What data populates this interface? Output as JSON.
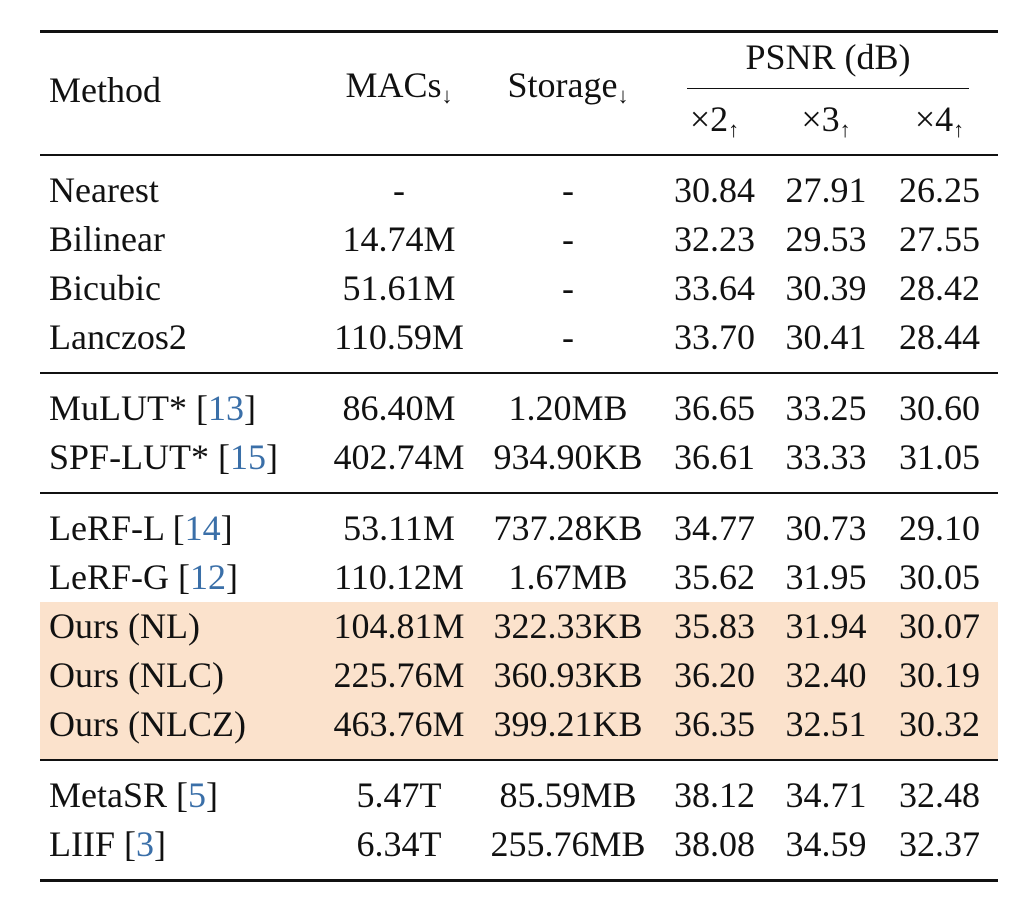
{
  "table": {
    "headers": {
      "method": "Method",
      "macs": "MACs",
      "macs_arrow": "↓",
      "storage": "Storage",
      "storage_arrow": "↓",
      "psnr": "PSNR (dB)",
      "x2": "×2",
      "x3": "×3",
      "x4": "×4",
      "up_arrow": "↑"
    },
    "group1": [
      {
        "method": "Nearest",
        "macs": "-",
        "storage": "-",
        "x2": "30.84",
        "x3": "27.91",
        "x4": "26.25"
      },
      {
        "method": "Bilinear",
        "macs": "14.74M",
        "storage": "-",
        "x2": "32.23",
        "x3": "29.53",
        "x4": "27.55"
      },
      {
        "method": "Bicubic",
        "macs": "51.61M",
        "storage": "-",
        "x2": "33.64",
        "x3": "30.39",
        "x4": "28.42"
      },
      {
        "method": "Lanczos2",
        "macs": "110.59M",
        "storage": "-",
        "x2": "33.70",
        "x3": "30.41",
        "x4": "28.44"
      }
    ],
    "group2": [
      {
        "method": "MuLUT* [",
        "cite": "13",
        "close": "]",
        "macs": "86.40M",
        "storage": "1.20MB",
        "x2": "36.65",
        "x3": "33.25",
        "x4": "30.60"
      },
      {
        "method": "SPF-LUT* [",
        "cite": "15",
        "close": "]",
        "macs": "402.74M",
        "storage": "934.90KB",
        "x2": "36.61",
        "x3": "33.33",
        "x4": "31.05"
      }
    ],
    "group3": [
      {
        "method": "LeRF-L [",
        "cite": "14",
        "close": "]",
        "macs": "53.11M",
        "storage": "737.28KB",
        "x2": "34.77",
        "x3": "30.73",
        "x4": "29.10"
      },
      {
        "method": "LeRF-G [",
        "cite": "12",
        "close": "]",
        "macs": "110.12M",
        "storage": "1.67MB",
        "x2": "35.62",
        "x3": "31.95",
        "x4": "30.05"
      },
      {
        "method": "Ours (NL)",
        "macs": "104.81M",
        "storage": "322.33KB",
        "x2": "35.83",
        "x3": "31.94",
        "x4": "30.07"
      },
      {
        "method": "Ours (NLC)",
        "macs": "225.76M",
        "storage": "360.93KB",
        "x2": "36.20",
        "x3": "32.40",
        "x4": "30.19"
      },
      {
        "method": "Ours (NLCZ)",
        "macs": "463.76M",
        "storage": "399.21KB",
        "x2": "36.35",
        "x3": "32.51",
        "x4": "30.32"
      }
    ],
    "group4": [
      {
        "method": "MetaSR [",
        "cite": "5",
        "close": "]",
        "macs": "5.47T",
        "storage": "85.59MB",
        "x2": "38.12",
        "x3": "34.71",
        "x4": "32.48"
      },
      {
        "method": "LIIF [",
        "cite": "3",
        "close": "]",
        "macs": "6.34T",
        "storage": "255.76MB",
        "x2": "38.08",
        "x3": "34.59",
        "x4": "32.37"
      }
    ]
  },
  "colors": {
    "highlight": "#fbe2cc",
    "citation": "#3a6fa8"
  }
}
